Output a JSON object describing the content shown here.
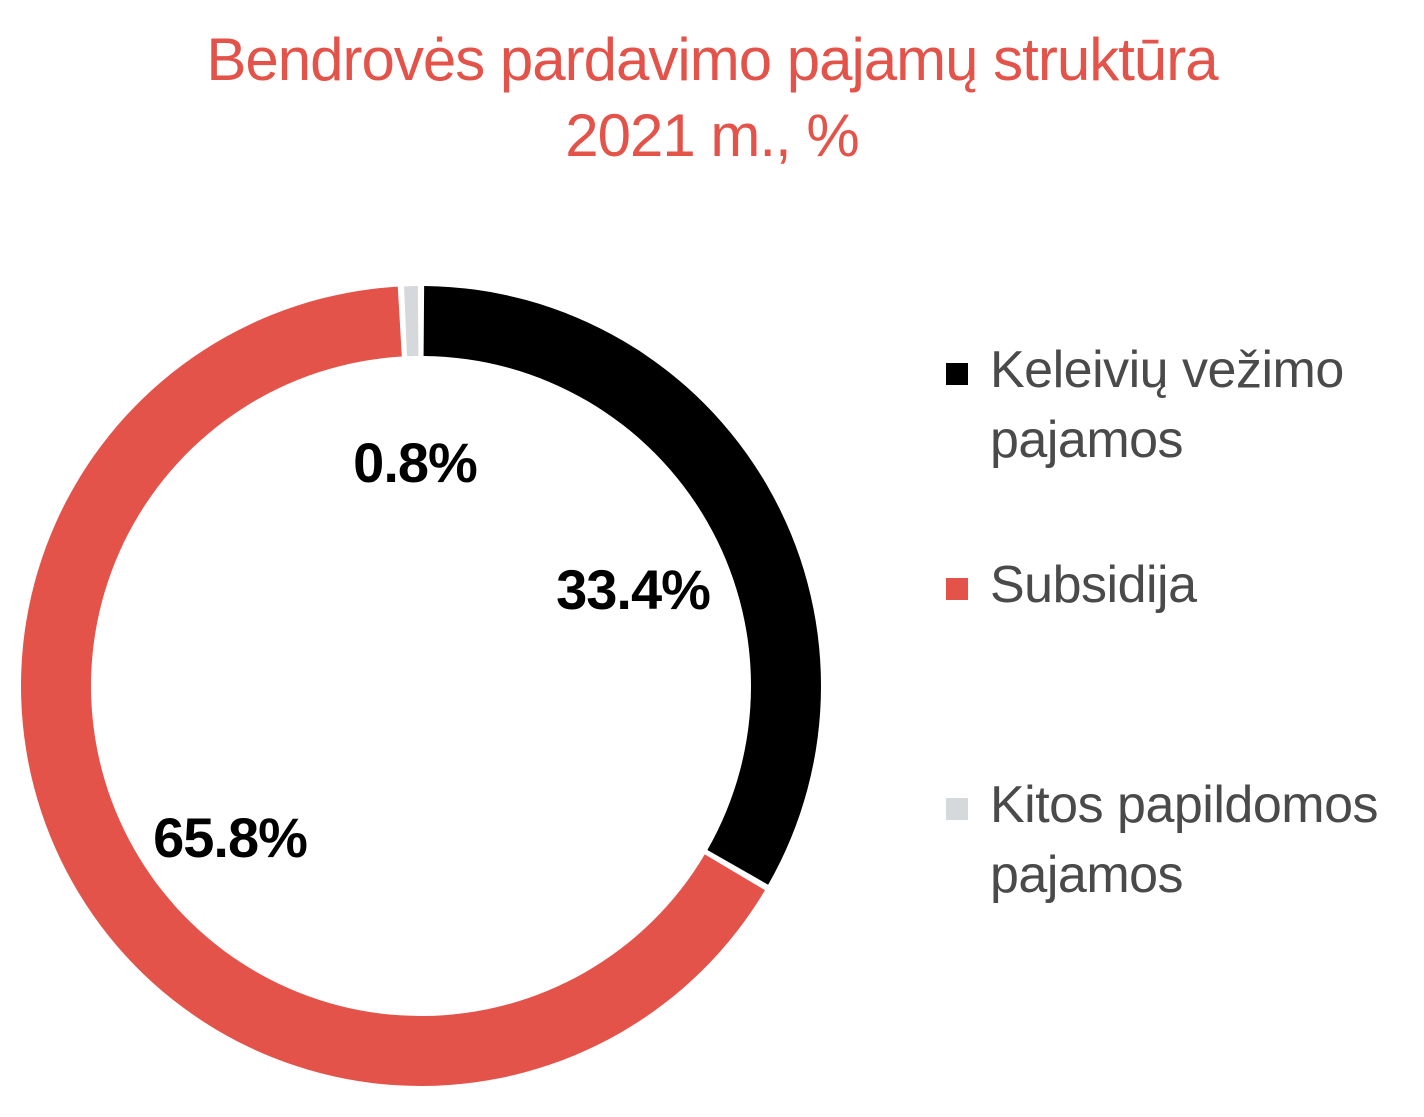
{
  "title_line1": "Bendrovės pardavimo pajamų struktūra",
  "title_line2": "2021 m., %",
  "colors": {
    "title": "#e4534a",
    "label": "#000000",
    "legend_text": "#4a4a4a"
  },
  "chart_data": {
    "type": "pie",
    "title": "Bendrovės pardavimo pajamų struktūra 2021 m., %",
    "donut": true,
    "legend_position": "right",
    "slices": [
      {
        "name": "Keleivių vežimo pajamos",
        "value": 33.4,
        "label": "33.4%",
        "color": "#000000"
      },
      {
        "name": "Subsidija",
        "value": 65.8,
        "label": "65.8%",
        "color": "#e4534a"
      },
      {
        "name": "Kitos papildomos pajamos",
        "value": 0.8,
        "label": "0.8%",
        "color": "#d6d9dc"
      }
    ]
  }
}
